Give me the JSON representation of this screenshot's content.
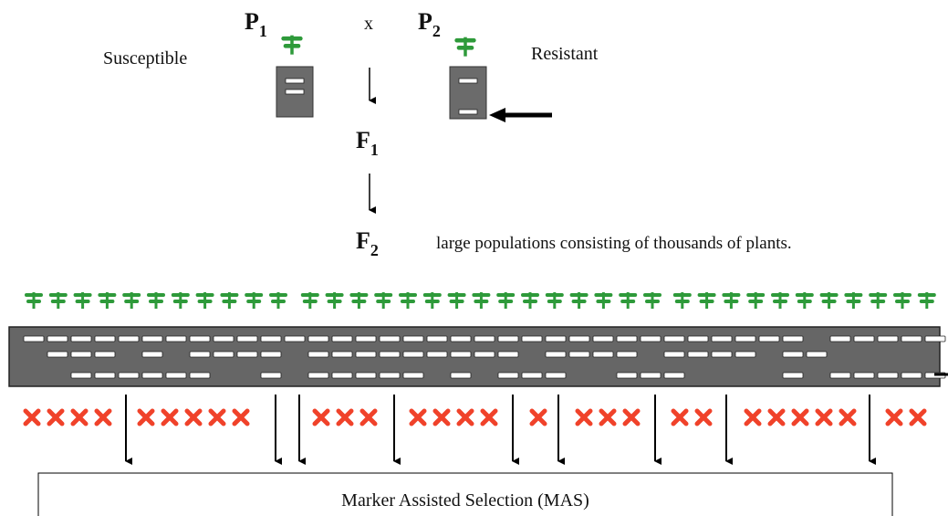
{
  "parents": [
    {
      "label": "P",
      "sub": "1",
      "trait": "Susceptible"
    },
    {
      "label": "P",
      "sub": "2",
      "trait": "Resistant"
    }
  ],
  "cross": "x",
  "generations": [
    {
      "label": "F",
      "sub": "1"
    },
    {
      "label": "F",
      "sub": "2",
      "note": "large populations  consisting  of thousands of plants."
    }
  ],
  "selection_box": "Marker Assisted Selection (MAS)"
}
